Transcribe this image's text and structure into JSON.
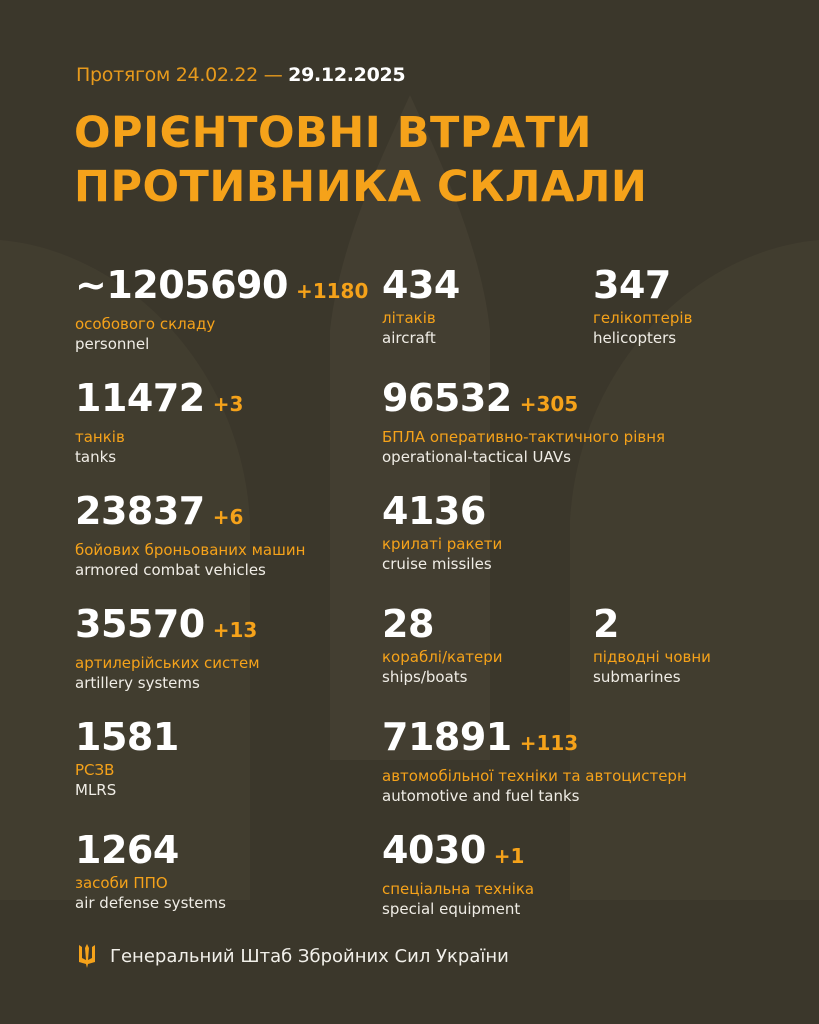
{
  "header": {
    "period_prefix": "Протягом 24.02.22 —",
    "period_date": "29.12.2025",
    "title_line1": "ОРІЄНТОВНІ ВТРАТИ",
    "title_line2": "ПРОТИВНИКА СКЛАЛИ"
  },
  "stats": [
    {
      "value": "~1205690",
      "increment": "+1180",
      "ua": "особового складу",
      "en": "personnel",
      "col": 1,
      "row": 1
    },
    {
      "value": "434",
      "increment": "",
      "ua": "літаків",
      "en": "aircraft",
      "col": 2,
      "row": 1
    },
    {
      "value": "347",
      "increment": "",
      "ua": "гелікоптерів",
      "en": "helicopters",
      "col": 3,
      "row": 1
    },
    {
      "value": "11472",
      "increment": "+3",
      "ua": "танків",
      "en": "tanks",
      "col": 1,
      "row": 2
    },
    {
      "value": "96532",
      "increment": "+305",
      "ua": "БПЛА оперативно-тактичного рівня",
      "en": "operational-tactical UAVs",
      "col": 2,
      "row": 2
    },
    {
      "value": "23837",
      "increment": "+6",
      "ua": "бойових броньованих машин",
      "en": "armored combat vehicles",
      "col": 1,
      "row": 3
    },
    {
      "value": "4136",
      "increment": "",
      "ua": "крилаті ракети",
      "en": "cruise missiles",
      "col": 2,
      "row": 3
    },
    {
      "value": "35570",
      "increment": "+13",
      "ua": "артилерійських систем",
      "en": "artillery systems",
      "col": 1,
      "row": 4
    },
    {
      "value": "28",
      "increment": "",
      "ua": "кораблі/катери",
      "en": "ships/boats",
      "col": 2,
      "row": 4
    },
    {
      "value": "2",
      "increment": "",
      "ua": "підводні човни",
      "en": "submarines",
      "col": 3,
      "row": 4
    },
    {
      "value": "1581",
      "increment": "",
      "ua": "РСЗВ",
      "en": "MLRS",
      "col": 1,
      "row": 5
    },
    {
      "value": "71891",
      "increment": "+113",
      "ua": "автомобільної техніки та автоцистерн",
      "en": "automotive and fuel tanks",
      "col": 2,
      "row": 5
    },
    {
      "value": "1264",
      "increment": "",
      "ua": "засоби ППО",
      "en": "air defense systems",
      "col": 1,
      "row": 6
    },
    {
      "value": "4030",
      "increment": "+1",
      "ua": "спеціальна техніка",
      "en": "special equipment",
      "col": 2,
      "row": 6
    }
  ],
  "footer": {
    "text": "Генеральний Штаб Збройних Сил України",
    "icon": "trident-icon"
  },
  "colors": {
    "background": "#3b372b",
    "accent": "#f5a21a",
    "text": "#ffffff"
  }
}
